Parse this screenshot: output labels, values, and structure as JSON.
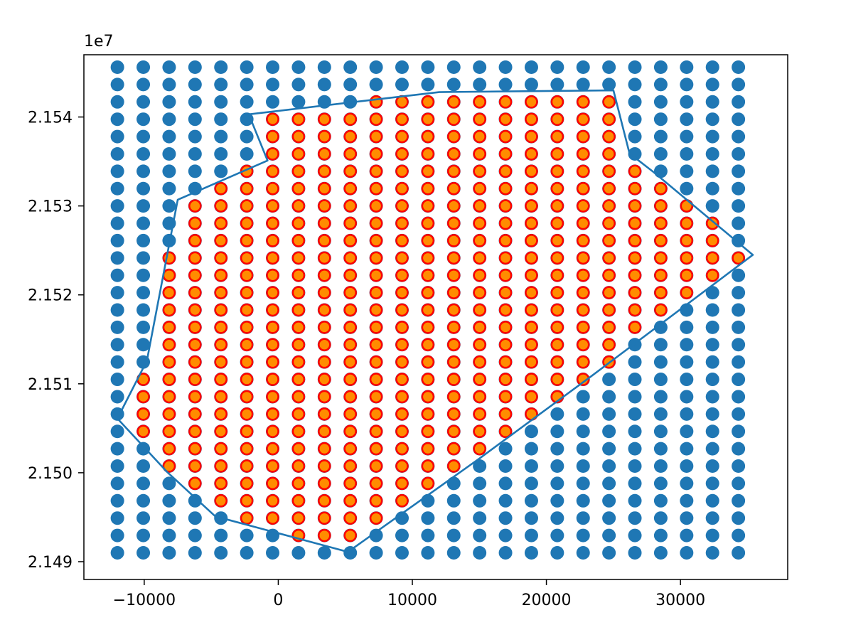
{
  "chart_data": {
    "type": "scatter",
    "x_offset_text": "",
    "y_offset_text": "1e7",
    "xlim": [
      -14500,
      38000
    ],
    "ylim": [
      21488000,
      21547000
    ],
    "x_ticks": [
      {
        "value": -10000,
        "label": "−10000"
      },
      {
        "value": 0,
        "label": "0"
      },
      {
        "value": 10000,
        "label": "10000"
      },
      {
        "value": 20000,
        "label": "20000"
      },
      {
        "value": 30000,
        "label": "30000"
      }
    ],
    "y_ticks": [
      {
        "value": 21490000,
        "label": "2.149"
      },
      {
        "value": 21500000,
        "label": "2.150"
      },
      {
        "value": 21510000,
        "label": "2.151"
      },
      {
        "value": 21520000,
        "label": "2.152"
      },
      {
        "value": 21530000,
        "label": "2.153"
      },
      {
        "value": 21540000,
        "label": "2.154"
      }
    ],
    "grid": {
      "x_start": -12000,
      "x_step": 1930,
      "x_count": 25,
      "y_start": 21491000,
      "y_step": 1950,
      "y_count": 29
    },
    "series": [
      {
        "kind": "grid_points",
        "color": "#1f77b4"
      },
      {
        "kind": "inside_points",
        "face_color": "#ff8c00",
        "edge_color": "#ff0000"
      },
      {
        "kind": "boundary_line",
        "color": "#1f77b4"
      }
    ],
    "polygon": [
      [
        -2200,
        21540300
      ],
      [
        -800,
        21535100
      ],
      [
        -7500,
        21530700
      ],
      [
        -9800,
        21512600
      ],
      [
        -12000,
        21506100
      ],
      [
        -8300,
        21500100
      ],
      [
        -4700,
        21495100
      ],
      [
        5200,
        21491100
      ],
      [
        15000,
        21501600
      ],
      [
        23300,
        21510800
      ],
      [
        35400,
        21524500
      ],
      [
        28000,
        21533800
      ],
      [
        26200,
        21535900
      ],
      [
        25000,
        21543000
      ],
      [
        12000,
        21542800
      ],
      [
        -2200,
        21540300
      ]
    ]
  }
}
